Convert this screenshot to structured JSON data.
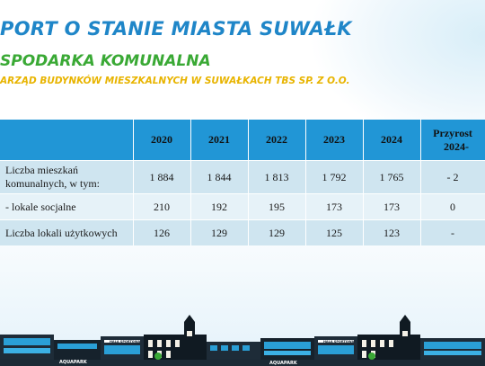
{
  "header": {
    "title": "PORT O STANIE MIASTA SUWAŁK",
    "section": "SPODARKA KOMUNALNA",
    "subsection": "ARZĄD BUDYNKÓW MIESZKALNYCH W SUWAŁKACH TBS SP. Z O.O."
  },
  "table": {
    "headers": [
      "",
      "2020",
      "2021",
      "2022",
      "2023",
      "2024",
      "Przyrost",
      "2024-"
    ],
    "rows": [
      {
        "label_line1": "Liczba mieszkań",
        "label_line2": "komunalnych, w tym:",
        "values": [
          "1 884",
          "1 844",
          "1 813",
          "1 792",
          "1 765"
        ],
        "delta": "- 2"
      },
      {
        "label": "- lokale socjalne",
        "values": [
          "210",
          "192",
          "195",
          "173",
          "173"
        ],
        "delta": "0"
      },
      {
        "label": "Liczba lokali użytkowych",
        "values": [
          "126",
          "129",
          "129",
          "125",
          "123"
        ],
        "delta": "-"
      }
    ]
  },
  "footer": {
    "sign_aquapark": "AQUAPARK",
    "sign_hala": "HALA SPORTOWA"
  },
  "colors": {
    "title": "#1f86c8",
    "section": "#3aa935",
    "subsection": "#e8b400",
    "table_header": "#2196d6",
    "row_dark": "#cfe5f0",
    "row_light": "#e6f2f8"
  }
}
